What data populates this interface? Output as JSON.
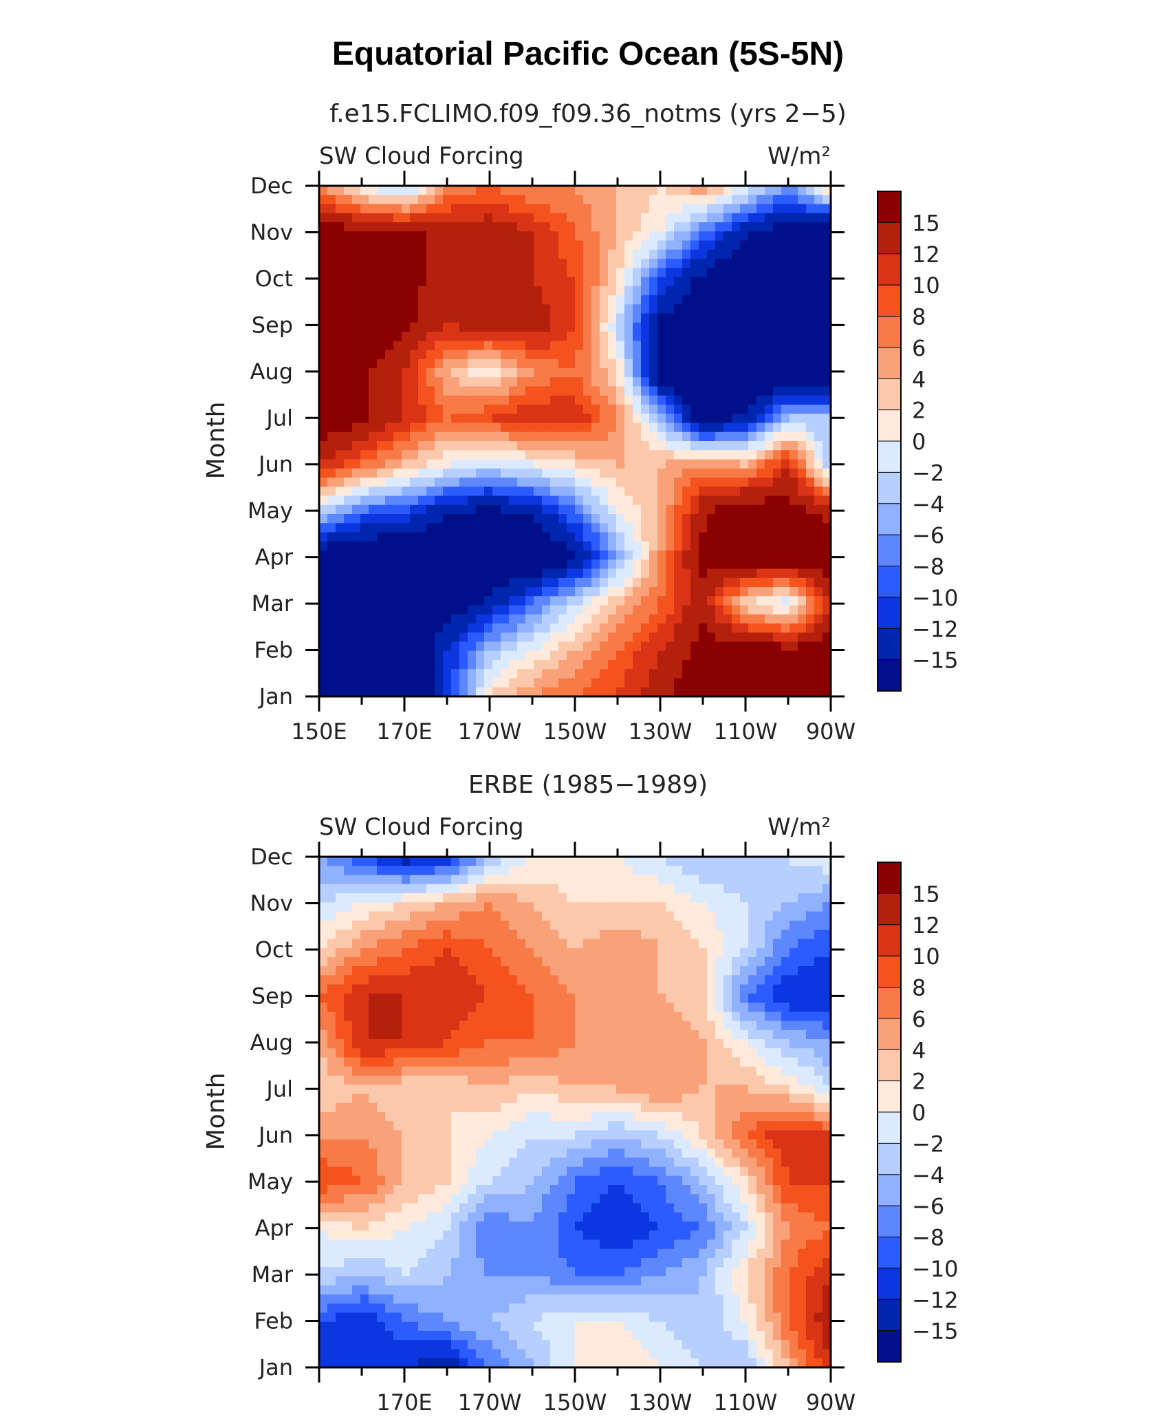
{
  "title": "Equatorial Pacific Ocean (5S-5N)",
  "colorbar": {
    "levels": [
      "15",
      "12",
      "10",
      "8",
      "6",
      "4",
      "2",
      "0",
      "−2",
      "−4",
      "−6",
      "−8",
      "−10",
      "−12",
      "−15"
    ],
    "colors": [
      "#8b0000",
      "#b5200d",
      "#da3416",
      "#f5531e",
      "#f77a47",
      "#f9a27a",
      "#fcc8ac",
      "#fee9da",
      "#dceaff",
      "#b6cfff",
      "#8fb1ff",
      "#5d87ff",
      "#2c5cff",
      "#0c36e0",
      "#0025ae",
      "#00108a"
    ]
  },
  "panels": [
    {
      "subtitle": "f.e15.FCLIMO.f09_f09.36_notms (yrs 2−5)",
      "left_label": "SW Cloud Forcing",
      "right_label": "W/m²",
      "ylabel": "Month"
    },
    {
      "subtitle": "ERBE (1985−1989)",
      "left_label": "SW Cloud Forcing",
      "right_label": "W/m²",
      "ylabel": "Month"
    }
  ],
  "chart_data": [
    {
      "type": "heatmap",
      "title": "f.e15.FCLIMO.f09_f09.36_notms (yrs 2−5)",
      "variable": "SW Cloud Forcing",
      "units": "W/m²",
      "ylabel": "Month",
      "x_ticks": [
        "150E",
        "170E",
        "170W",
        "150W",
        "130W",
        "110W",
        "90W"
      ],
      "x_lon": [
        150,
        170,
        190,
        210,
        230,
        250,
        270
      ],
      "y_ticks": [
        "Jan",
        "Feb",
        "Mar",
        "Apr",
        "May",
        "Jun",
        "Jul",
        "Aug",
        "Sep",
        "Oct",
        "Nov",
        "Dec"
      ],
      "xlim": [
        150,
        270
      ],
      "ylim": [
        1,
        12
      ],
      "lon": [
        150,
        160,
        170,
        180,
        190,
        200,
        210,
        220,
        230,
        240,
        250,
        260,
        270
      ],
      "z": [
        [
          -20,
          -20,
          -20,
          -12,
          2,
          6,
          8,
          10,
          14,
          18,
          18,
          18,
          18
        ],
        [
          -20,
          -20,
          -20,
          -12,
          -4,
          0,
          4,
          8,
          12,
          16,
          18,
          16,
          18
        ],
        [
          -20,
          -20,
          -20,
          -18,
          -14,
          -8,
          -2,
          4,
          8,
          14,
          2,
          -2,
          12
        ],
        [
          -18,
          -20,
          -20,
          -20,
          -20,
          -20,
          -16,
          -6,
          6,
          16,
          18,
          18,
          18
        ],
        [
          -2,
          -8,
          -10,
          -14,
          -16,
          -14,
          -8,
          0,
          4,
          14,
          18,
          16,
          14
        ],
        [
          12,
          8,
          4,
          0,
          -2,
          0,
          2,
          4,
          4,
          6,
          4,
          12,
          -4
        ],
        [
          18,
          16,
          12,
          8,
          10,
          12,
          12,
          6,
          -4,
          -18,
          -14,
          -4,
          -4
        ],
        [
          18,
          16,
          12,
          4,
          0,
          6,
          8,
          2,
          -18,
          -20,
          -20,
          -20,
          -20
        ],
        [
          18,
          18,
          16,
          12,
          14,
          14,
          10,
          -2,
          -16,
          -20,
          -20,
          -20,
          -20
        ],
        [
          18,
          18,
          16,
          14,
          14,
          12,
          10,
          2,
          -10,
          -16,
          -20,
          -20,
          -20
        ],
        [
          18,
          16,
          16,
          14,
          14,
          12,
          8,
          4,
          0,
          -8,
          -14,
          -18,
          -20
        ],
        [
          6,
          0,
          -4,
          6,
          8,
          6,
          6,
          4,
          2,
          6,
          0,
          -6,
          4
        ]
      ]
    },
    {
      "type": "heatmap",
      "title": "ERBE (1985−1989)",
      "variable": "SW Cloud Forcing",
      "units": "W/m²",
      "ylabel": "Month",
      "x_ticks": [
        "170E",
        "170W",
        "150W",
        "130W",
        "110W",
        "90W"
      ],
      "x_lon": [
        170,
        190,
        210,
        230,
        250,
        270
      ],
      "y_ticks": [
        "Jan",
        "Feb",
        "Mar",
        "Apr",
        "May",
        "Jun",
        "Jul",
        "Aug",
        "Sep",
        "Oct",
        "Nov",
        "Dec"
      ],
      "xlim": [
        150,
        270
      ],
      "ylim": [
        1,
        12
      ],
      "lon": [
        150,
        160,
        170,
        180,
        190,
        200,
        210,
        220,
        230,
        240,
        250,
        260,
        270
      ],
      "z": [
        [
          -10,
          -12,
          -12,
          -14,
          -8,
          -4,
          0,
          2,
          0,
          -2,
          -4,
          4,
          12
        ],
        [
          -10,
          -12,
          -8,
          -6,
          -4,
          -2,
          0,
          0,
          -2,
          -4,
          0,
          8,
          14
        ],
        [
          -2,
          -4,
          -2,
          -4,
          -6,
          -6,
          -8,
          -8,
          -6,
          -4,
          2,
          8,
          12
        ],
        [
          0,
          2,
          0,
          -2,
          -8,
          -6,
          -10,
          -12,
          -10,
          -8,
          -2,
          6,
          8
        ],
        [
          10,
          8,
          4,
          2,
          -2,
          -4,
          -8,
          -10,
          -8,
          -4,
          2,
          10,
          10
        ],
        [
          6,
          6,
          4,
          2,
          0,
          -2,
          -2,
          -4,
          -2,
          2,
          8,
          12,
          10
        ],
        [
          2,
          4,
          2,
          2,
          4,
          2,
          4,
          4,
          6,
          4,
          4,
          2,
          -2
        ],
        [
          4,
          12,
          12,
          10,
          8,
          8,
          6,
          6,
          6,
          4,
          0,
          -4,
          -6
        ],
        [
          8,
          12,
          12,
          12,
          10,
          8,
          6,
          4,
          4,
          2,
          -8,
          -12,
          -12
        ],
        [
          2,
          6,
          8,
          10,
          8,
          6,
          4,
          6,
          4,
          2,
          -2,
          -8,
          -10
        ],
        [
          -2,
          0,
          2,
          4,
          6,
          4,
          2,
          2,
          2,
          0,
          -2,
          -4,
          -6
        ],
        [
          -6,
          -10,
          -14,
          -12,
          -4,
          0,
          0,
          0,
          -2,
          -4,
          -4,
          -2,
          0
        ]
      ]
    }
  ]
}
